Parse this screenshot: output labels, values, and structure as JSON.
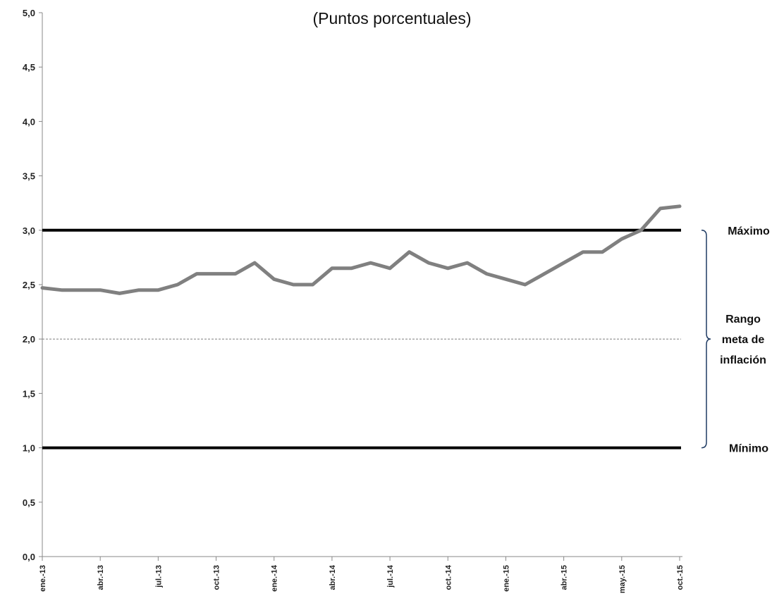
{
  "chart_data": {
    "type": "line",
    "subtitle": "(Puntos porcentuales)",
    "ylim": [
      0,
      5
    ],
    "yticks": [
      "0,0",
      "0,5",
      "1,0",
      "1,5",
      "2,0",
      "2,5",
      "3,0",
      "3,5",
      "4,0",
      "4,5",
      "5,0"
    ],
    "x_tick_labels": [
      "ene.-13",
      "abr.-13",
      "jul.-13",
      "oct.-13",
      "ene.-14",
      "abr.-14",
      "jul.-14",
      "oct.-14",
      "ene.-15",
      "abr.-15",
      "may.-15",
      "oct.-15"
    ],
    "series": [
      {
        "color": "#808080",
        "values": [
          2.47,
          2.45,
          2.45,
          2.45,
          2.42,
          2.45,
          2.45,
          2.5,
          2.6,
          2.6,
          2.6,
          2.7,
          2.55,
          2.5,
          2.5,
          2.65,
          2.65,
          2.7,
          2.65,
          2.8,
          2.7,
          2.65,
          2.7,
          2.6,
          2.55,
          2.5,
          2.6,
          2.7,
          2.8,
          2.8,
          2.92,
          3.0,
          3.2,
          3.22
        ]
      }
    ],
    "reference_lines": [
      {
        "label": "Máximo",
        "value": 3.0,
        "style": "solid",
        "color": "#000000"
      },
      {
        "label": "",
        "value": 2.0,
        "style": "dashed",
        "color": "#808080"
      },
      {
        "label": "Mínimo",
        "value": 1.0,
        "style": "solid",
        "color": "#000000"
      }
    ],
    "bracket_label": [
      "Rango",
      "meta de",
      "inflación"
    ],
    "grid": false,
    "legend": "none"
  }
}
